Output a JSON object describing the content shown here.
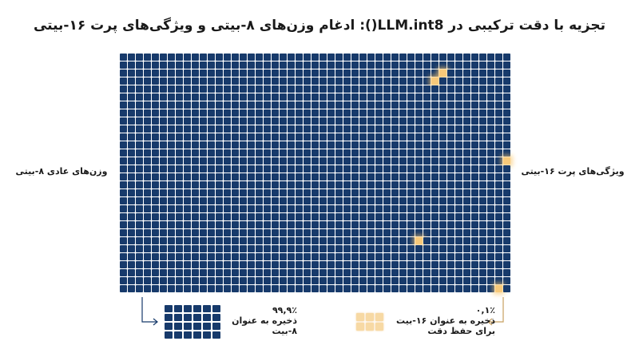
{
  "title": "تجزیه با دقت ترکیبی در LLM.int8(): ادغام وزن‌های ۸-بیتی و ویژگی‌های پرت ۱۶-بیتی",
  "grid": {
    "columns": 49,
    "rows": 30,
    "cell_color": "#173a6b",
    "highlight_color": "#f7c97a",
    "highlighted_cells": [
      {
        "row": 3,
        "col": 41
      },
      {
        "row": 4,
        "col": 40
      },
      {
        "row": 14,
        "col": 49
      },
      {
        "row": 24,
        "col": 38
      },
      {
        "row": 30,
        "col": 48
      }
    ]
  },
  "labels": {
    "left": "وزن‌های عادی ۸-بیتی",
    "right": "ویژگی‌های پرت ۱۶-بیتی"
  },
  "legend": {
    "int8": {
      "percent": "۹۹,۹٪",
      "line1": "ذخیره به عنوان",
      "line2": "۸-بیت",
      "icon": "arrow-icon"
    },
    "fp16": {
      "percent": "۰,۱٪",
      "line1": "ذخیره به عنوان ۱۶-بیت",
      "line2": "برای حفظ دقت",
      "icon": "arrow-icon"
    }
  }
}
